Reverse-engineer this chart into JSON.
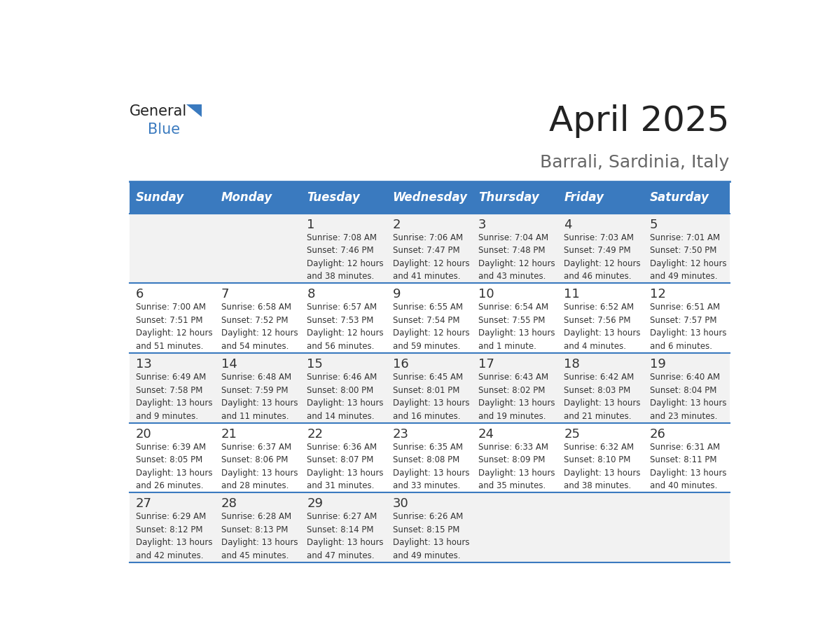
{
  "title": "April 2025",
  "subtitle": "Barrali, Sardinia, Italy",
  "header_bg": "#3a7abf",
  "header_text": "#ffffff",
  "row_bg_odd": "#f2f2f2",
  "row_bg_even": "#ffffff",
  "separator_color": "#3a7abf",
  "text_color": "#333333",
  "days_of_week": [
    "Sunday",
    "Monday",
    "Tuesday",
    "Wednesday",
    "Thursday",
    "Friday",
    "Saturday"
  ],
  "weeks": [
    [
      {
        "day": "",
        "info": ""
      },
      {
        "day": "",
        "info": ""
      },
      {
        "day": "1",
        "info": "Sunrise: 7:08 AM\nSunset: 7:46 PM\nDaylight: 12 hours\nand 38 minutes."
      },
      {
        "day": "2",
        "info": "Sunrise: 7:06 AM\nSunset: 7:47 PM\nDaylight: 12 hours\nand 41 minutes."
      },
      {
        "day": "3",
        "info": "Sunrise: 7:04 AM\nSunset: 7:48 PM\nDaylight: 12 hours\nand 43 minutes."
      },
      {
        "day": "4",
        "info": "Sunrise: 7:03 AM\nSunset: 7:49 PM\nDaylight: 12 hours\nand 46 minutes."
      },
      {
        "day": "5",
        "info": "Sunrise: 7:01 AM\nSunset: 7:50 PM\nDaylight: 12 hours\nand 49 minutes."
      }
    ],
    [
      {
        "day": "6",
        "info": "Sunrise: 7:00 AM\nSunset: 7:51 PM\nDaylight: 12 hours\nand 51 minutes."
      },
      {
        "day": "7",
        "info": "Sunrise: 6:58 AM\nSunset: 7:52 PM\nDaylight: 12 hours\nand 54 minutes."
      },
      {
        "day": "8",
        "info": "Sunrise: 6:57 AM\nSunset: 7:53 PM\nDaylight: 12 hours\nand 56 minutes."
      },
      {
        "day": "9",
        "info": "Sunrise: 6:55 AM\nSunset: 7:54 PM\nDaylight: 12 hours\nand 59 minutes."
      },
      {
        "day": "10",
        "info": "Sunrise: 6:54 AM\nSunset: 7:55 PM\nDaylight: 13 hours\nand 1 minute."
      },
      {
        "day": "11",
        "info": "Sunrise: 6:52 AM\nSunset: 7:56 PM\nDaylight: 13 hours\nand 4 minutes."
      },
      {
        "day": "12",
        "info": "Sunrise: 6:51 AM\nSunset: 7:57 PM\nDaylight: 13 hours\nand 6 minutes."
      }
    ],
    [
      {
        "day": "13",
        "info": "Sunrise: 6:49 AM\nSunset: 7:58 PM\nDaylight: 13 hours\nand 9 minutes."
      },
      {
        "day": "14",
        "info": "Sunrise: 6:48 AM\nSunset: 7:59 PM\nDaylight: 13 hours\nand 11 minutes."
      },
      {
        "day": "15",
        "info": "Sunrise: 6:46 AM\nSunset: 8:00 PM\nDaylight: 13 hours\nand 14 minutes."
      },
      {
        "day": "16",
        "info": "Sunrise: 6:45 AM\nSunset: 8:01 PM\nDaylight: 13 hours\nand 16 minutes."
      },
      {
        "day": "17",
        "info": "Sunrise: 6:43 AM\nSunset: 8:02 PM\nDaylight: 13 hours\nand 19 minutes."
      },
      {
        "day": "18",
        "info": "Sunrise: 6:42 AM\nSunset: 8:03 PM\nDaylight: 13 hours\nand 21 minutes."
      },
      {
        "day": "19",
        "info": "Sunrise: 6:40 AM\nSunset: 8:04 PM\nDaylight: 13 hours\nand 23 minutes."
      }
    ],
    [
      {
        "day": "20",
        "info": "Sunrise: 6:39 AM\nSunset: 8:05 PM\nDaylight: 13 hours\nand 26 minutes."
      },
      {
        "day": "21",
        "info": "Sunrise: 6:37 AM\nSunset: 8:06 PM\nDaylight: 13 hours\nand 28 minutes."
      },
      {
        "day": "22",
        "info": "Sunrise: 6:36 AM\nSunset: 8:07 PM\nDaylight: 13 hours\nand 31 minutes."
      },
      {
        "day": "23",
        "info": "Sunrise: 6:35 AM\nSunset: 8:08 PM\nDaylight: 13 hours\nand 33 minutes."
      },
      {
        "day": "24",
        "info": "Sunrise: 6:33 AM\nSunset: 8:09 PM\nDaylight: 13 hours\nand 35 minutes."
      },
      {
        "day": "25",
        "info": "Sunrise: 6:32 AM\nSunset: 8:10 PM\nDaylight: 13 hours\nand 38 minutes."
      },
      {
        "day": "26",
        "info": "Sunrise: 6:31 AM\nSunset: 8:11 PM\nDaylight: 13 hours\nand 40 minutes."
      }
    ],
    [
      {
        "day": "27",
        "info": "Sunrise: 6:29 AM\nSunset: 8:12 PM\nDaylight: 13 hours\nand 42 minutes."
      },
      {
        "day": "28",
        "info": "Sunrise: 6:28 AM\nSunset: 8:13 PM\nDaylight: 13 hours\nand 45 minutes."
      },
      {
        "day": "29",
        "info": "Sunrise: 6:27 AM\nSunset: 8:14 PM\nDaylight: 13 hours\nand 47 minutes."
      },
      {
        "day": "30",
        "info": "Sunrise: 6:26 AM\nSunset: 8:15 PM\nDaylight: 13 hours\nand 49 minutes."
      },
      {
        "day": "",
        "info": ""
      },
      {
        "day": "",
        "info": ""
      },
      {
        "day": "",
        "info": ""
      }
    ]
  ]
}
